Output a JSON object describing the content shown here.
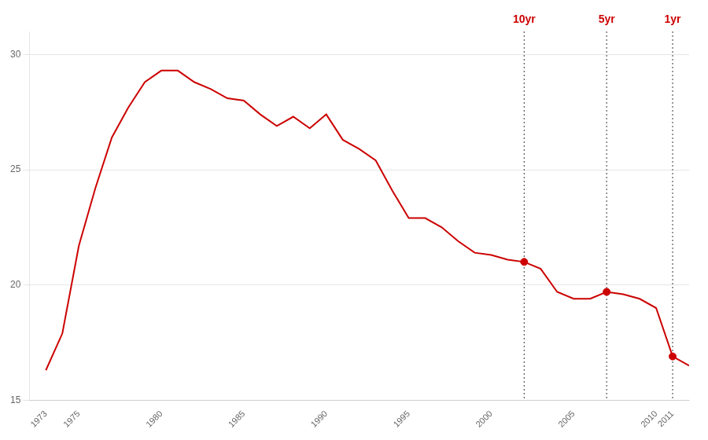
{
  "chart_data": {
    "type": "line",
    "x": [
      1973,
      1974,
      1975,
      1976,
      1977,
      1978,
      1979,
      1980,
      1981,
      1982,
      1983,
      1984,
      1985,
      1986,
      1987,
      1988,
      1989,
      1990,
      1991,
      1992,
      1993,
      1994,
      1995,
      1996,
      1997,
      1998,
      1999,
      2000,
      2001,
      2002,
      2003,
      2004,
      2005,
      2006,
      2007,
      2008,
      2009,
      2010,
      2011,
      2012
    ],
    "values": [
      16.3,
      17.9,
      21.7,
      24.2,
      26.4,
      27.7,
      28.8,
      29.3,
      29.3,
      28.8,
      28.5,
      28.1,
      28.0,
      27.4,
      26.9,
      27.3,
      26.8,
      27.4,
      26.3,
      25.9,
      25.4,
      24.1,
      22.9,
      22.9,
      22.5,
      21.9,
      21.4,
      21.3,
      21.1,
      21.0,
      20.7,
      19.7,
      19.4,
      19.4,
      19.7,
      19.6,
      19.4,
      19.0,
      16.9,
      16.5
    ],
    "color": "#cc0000",
    "xlim": [
      1972,
      2012
    ],
    "xticks": [
      1973,
      1975,
      1980,
      1985,
      1990,
      1995,
      2000,
      2005,
      2010,
      2011
    ],
    "ylim": [
      15,
      31
    ],
    "yticks": [
      15,
      20,
      25,
      30
    ],
    "grid": "y",
    "annotations": [
      {
        "x": 2002,
        "y": 21.0,
        "text": "10yr",
        "color": "#cc0000"
      },
      {
        "x": 2007,
        "y": 19.7,
        "text": "5yr",
        "color": "#cc0000"
      },
      {
        "x": 2011,
        "y": 16.9,
        "text": "1yr",
        "color": "#cc0000"
      }
    ]
  }
}
